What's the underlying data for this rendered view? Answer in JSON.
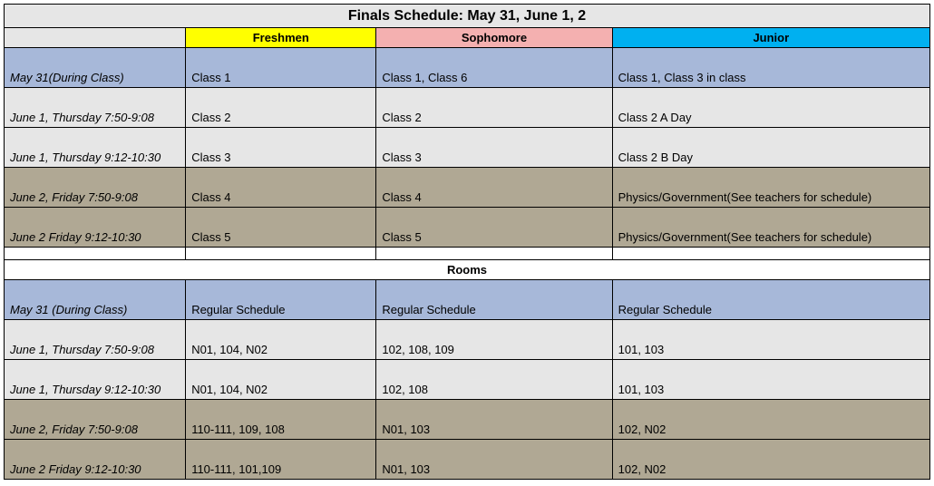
{
  "title": "Finals Schedule:  May 31, June 1, 2",
  "colors": {
    "title_bg": "#e6e6e6",
    "time_header_bg": "#e6e6e6",
    "freshmen_bg": "#ffff00",
    "sophomore_bg": "#f4b0b0",
    "junior_bg": "#00b0f0",
    "row_blue": "#a7b8d9",
    "row_light": "#e6e6e6",
    "row_tan": "#b0a894",
    "white": "#ffffff",
    "border": "#000000"
  },
  "headers": {
    "freshmen": "Freshmen",
    "sophomore": "Sophomore",
    "junior": "Junior"
  },
  "schedule": {
    "r1": {
      "time": "May 31(During Class)",
      "fresh": "Class 1",
      "soph": "Class 1, Class 6",
      "jun": "Class 1, Class 3 in class",
      "bg": "#a7b8d9",
      "tall": true
    },
    "r2": {
      "time": "June 1, Thursday 7:50-9:08",
      "fresh": "Class 2",
      "soph": "Class 2",
      "jun": "Class 2 A Day",
      "bg": "#e6e6e6",
      "tall": true
    },
    "r3": {
      "time": "June 1, Thursday 9:12-10:30",
      "fresh": "Class 3",
      "soph": "Class 3",
      "jun": "Class 2 B Day",
      "bg": "#e6e6e6",
      "tall": true
    },
    "r4": {
      "time": "June 2, Friday 7:50-9:08",
      "fresh": "Class 4",
      "soph": "Class 4",
      "jun": "Physics/Government(See teachers for schedule)",
      "bg": "#b0a894",
      "tall": true
    },
    "r5": {
      "time": "June 2 Friday 9:12-10:30",
      "fresh": "Class 5",
      "soph": "Class 5",
      "jun": "Physics/Government(See teachers for schedule)",
      "bg": "#b0a894",
      "tall": true
    }
  },
  "rooms_header": "Rooms",
  "rooms": {
    "r1": {
      "time": "May 31 (During Class)",
      "fresh": "Regular Schedule",
      "soph": "Regular Schedule",
      "jun": "Regular Schedule",
      "bg": "#a7b8d9",
      "tall": true
    },
    "r2": {
      "time": "June 1, Thursday 7:50-9:08",
      "fresh": "N01, 104, N02",
      "soph": "102, 108, 109",
      "jun": "101, 103",
      "bg": "#e6e6e6",
      "tall": true
    },
    "r3": {
      "time": "June 1, Thursday 9:12-10:30",
      "fresh": "N01, 104, N02",
      "soph": "102, 108",
      "jun": "101, 103",
      "bg": "#e6e6e6",
      "tall": true
    },
    "r4": {
      "time": "June 2, Friday 7:50-9:08",
      "fresh": "110-111, 109, 108",
      "soph": "N01, 103",
      "jun": "102, N02",
      "bg": "#b0a894",
      "tall": true
    },
    "r5": {
      "time": "June 2 Friday 9:12-10:30",
      "fresh": "110-111, 101,109",
      "soph": "N01, 103",
      "jun": "102, N02",
      "bg": "#b0a894",
      "tall": true
    }
  }
}
